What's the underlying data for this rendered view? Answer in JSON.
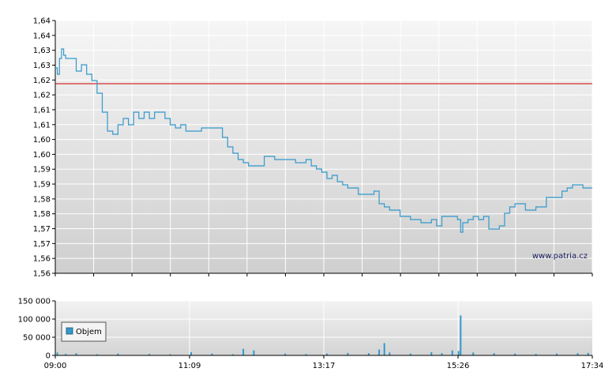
{
  "watermark": "www.patria.cz",
  "chart_data": [
    {
      "type": "line",
      "name": "price-chart",
      "ylim": [
        1.56,
        1.64
      ],
      "yticks": [
        "1,56",
        "1,56",
        "1,57",
        "1,57",
        "1,58",
        "1,58",
        "1,59",
        "1,59",
        "1,60",
        "1,60",
        "1,61",
        "1,61",
        "1,62",
        "1,62",
        "1,63",
        "1,63",
        "1,64",
        "1,64"
      ],
      "reference_line": {
        "value": 1.62,
        "color": "#cc0000"
      },
      "colors": {
        "line": "#3399cc",
        "grid": "#ffffff"
      },
      "grid": true,
      "x_start": "09:00",
      "x_end": "17:34",
      "series": [
        {
          "x": [
            "09:00",
            "09:02",
            "09:04",
            "09:06",
            "09:08",
            "09:10",
            "09:15",
            "09:20",
            "09:25",
            "09:30",
            "09:35",
            "09:40",
            "09:45",
            "09:50",
            "09:55",
            "10:00",
            "10:05",
            "10:10",
            "10:15",
            "10:20",
            "10:25",
            "10:30",
            "10:35",
            "10:40",
            "10:45",
            "10:50",
            "10:55",
            "11:00",
            "11:05",
            "11:10",
            "11:15",
            "11:20",
            "11:25",
            "11:30",
            "11:35",
            "11:40",
            "11:45",
            "11:50",
            "11:55",
            "12:00",
            "12:05",
            "12:10",
            "12:20",
            "12:30",
            "12:40",
            "12:50",
            "13:00",
            "13:05",
            "13:10",
            "13:15",
            "13:20",
            "13:25",
            "13:30",
            "13:35",
            "13:40",
            "13:50",
            "14:00",
            "14:05",
            "14:10",
            "14:15",
            "14:20",
            "14:30",
            "14:40",
            "14:50",
            "15:00",
            "15:05",
            "15:10",
            "15:15",
            "15:20",
            "15:25",
            "15:28",
            "15:30",
            "15:35",
            "15:40",
            "15:45",
            "15:50",
            "15:55",
            "16:00",
            "16:05",
            "16:10",
            "16:15",
            "16:20",
            "16:30",
            "16:40",
            "16:50",
            "17:00",
            "17:05",
            "17:10",
            "17:15",
            "17:20",
            "17:25",
            "17:30",
            "17:34"
          ],
          "y": [
            1.625,
            1.623,
            1.628,
            1.631,
            1.629,
            1.628,
            1.628,
            1.624,
            1.626,
            1.623,
            1.621,
            1.617,
            1.611,
            1.605,
            1.604,
            1.607,
            1.609,
            1.607,
            1.611,
            1.609,
            1.611,
            1.609,
            1.611,
            1.611,
            1.609,
            1.607,
            1.606,
            1.607,
            1.605,
            1.605,
            1.605,
            1.606,
            1.606,
            1.606,
            1.606,
            1.603,
            1.6,
            1.598,
            1.596,
            1.595,
            1.594,
            1.594,
            1.597,
            1.596,
            1.596,
            1.595,
            1.596,
            1.594,
            1.593,
            1.592,
            1.59,
            1.591,
            1.589,
            1.588,
            1.587,
            1.585,
            1.585,
            1.586,
            1.582,
            1.581,
            1.58,
            1.578,
            1.577,
            1.576,
            1.577,
            1.575,
            1.578,
            1.578,
            1.578,
            1.577,
            1.573,
            1.576,
            1.577,
            1.578,
            1.577,
            1.578,
            1.574,
            1.574,
            1.575,
            1.579,
            1.581,
            1.582,
            1.58,
            1.581,
            1.584,
            1.584,
            1.586,
            1.587,
            1.588,
            1.588,
            1.587,
            1.587,
            1.587
          ]
        }
      ]
    },
    {
      "type": "bar",
      "name": "volume-chart",
      "ylim": [
        0,
        150000
      ],
      "yticks": [
        "0",
        "50 000",
        "100 000",
        "150 000"
      ],
      "xticks": [
        "09:00",
        "11:09",
        "13:17",
        "15:26",
        "17:34"
      ],
      "colors": {
        "bar": "#3399cc",
        "grid": "#ffffff"
      },
      "grid": true,
      "legend": {
        "label": "Objem",
        "position": "left"
      },
      "series": [
        {
          "name": "Objem",
          "x": [
            "09:02",
            "09:10",
            "09:20",
            "09:40",
            "10:00",
            "10:30",
            "10:50",
            "11:10",
            "11:30",
            "11:50",
            "12:00",
            "12:10",
            "12:40",
            "13:00",
            "13:20",
            "13:40",
            "14:00",
            "14:10",
            "14:15",
            "14:20",
            "14:40",
            "15:00",
            "15:10",
            "15:20",
            "15:26",
            "15:28",
            "15:40",
            "16:00",
            "16:20",
            "16:40",
            "17:00",
            "17:20",
            "17:30"
          ],
          "values": [
            8000,
            4000,
            6000,
            3000,
            5000,
            4000,
            3000,
            9000,
            5000,
            3000,
            18000,
            14000,
            5000,
            4000,
            5000,
            7000,
            6000,
            16000,
            34000,
            8000,
            5000,
            9000,
            6000,
            14000,
            12000,
            110000,
            8000,
            6000,
            5000,
            4000,
            5000,
            6000,
            7000
          ]
        }
      ]
    }
  ]
}
